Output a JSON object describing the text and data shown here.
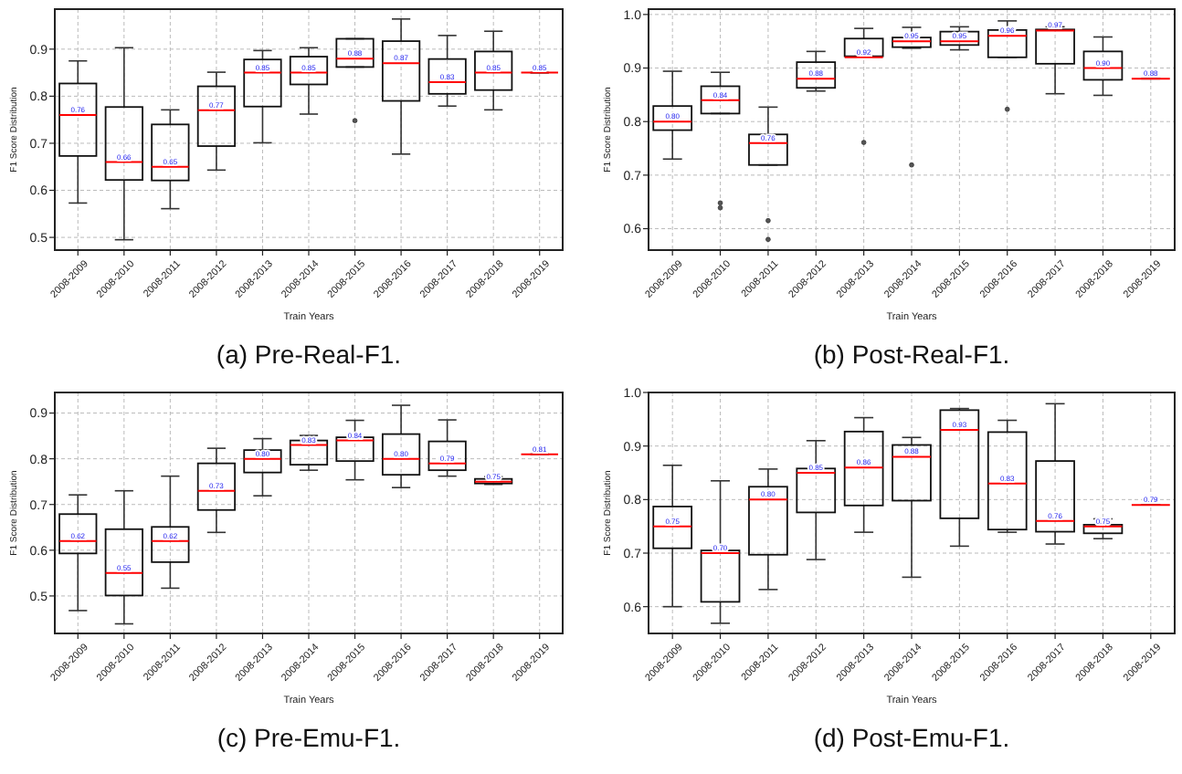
{
  "chart_data": [
    {
      "type": "box",
      "title": "(a) Pre-Real-F1.",
      "xlabel": "Train Years",
      "ylabel": "F1 Score Distribution",
      "categories": [
        "2008-2009",
        "2008-2010",
        "2008-2011",
        "2008-2012",
        "2008-2013",
        "2008-2014",
        "2008-2015",
        "2008-2016",
        "2008-2017",
        "2008-2018",
        "2008-2019"
      ],
      "ylim": [
        0.473,
        0.985
      ],
      "yticks": [
        0.5,
        0.6,
        0.7,
        0.8,
        0.9
      ],
      "grid": true,
      "value_labels": [
        "0.76",
        "0.66",
        "0.65",
        "0.77",
        "0.85",
        "0.85",
        "0.88",
        "0.87",
        "0.83",
        "0.85",
        "0.85"
      ],
      "boxes": [
        {
          "low": 0.573,
          "q1": 0.673,
          "median": 0.76,
          "q3": 0.827,
          "high": 0.875
        },
        {
          "low": 0.495,
          "q1": 0.622,
          "median": 0.66,
          "q3": 0.777,
          "high": 0.903
        },
        {
          "low": 0.561,
          "q1": 0.621,
          "median": 0.65,
          "q3": 0.74,
          "high": 0.771
        },
        {
          "low": 0.643,
          "q1": 0.694,
          "median": 0.77,
          "q3": 0.821,
          "high": 0.851
        },
        {
          "low": 0.701,
          "q1": 0.778,
          "median": 0.85,
          "q3": 0.878,
          "high": 0.897
        },
        {
          "low": 0.762,
          "q1": 0.825,
          "median": 0.85,
          "q3": 0.884,
          "high": 0.903
        },
        {
          "low": 0.862,
          "q1": 0.862,
          "median": 0.88,
          "q3": 0.922,
          "high": 0.922,
          "outliers": [
            0.748
          ]
        },
        {
          "low": 0.677,
          "q1": 0.79,
          "median": 0.87,
          "q3": 0.917,
          "high": 0.964
        },
        {
          "low": 0.779,
          "q1": 0.805,
          "median": 0.83,
          "q3": 0.879,
          "high": 0.929
        },
        {
          "low": 0.771,
          "q1": 0.813,
          "median": 0.85,
          "q3": 0.895,
          "high": 0.938
        },
        {
          "low": 0.85,
          "q1": 0.85,
          "median": 0.85,
          "q3": 0.85,
          "high": 0.85
        }
      ]
    },
    {
      "type": "box",
      "title": "(b) Post-Real-F1.",
      "xlabel": "Train Years",
      "ylabel": "F1 Score Distribution",
      "categories": [
        "2008-2009",
        "2008-2010",
        "2008-2011",
        "2008-2012",
        "2008-2013",
        "2008-2014",
        "2008-2015",
        "2008-2016",
        "2008-2017",
        "2008-2018",
        "2008-2019"
      ],
      "ylim": [
        0.56,
        1.01
      ],
      "yticks": [
        0.6,
        0.7,
        0.8,
        0.9,
        {
          "value": 1,
          "label": "1.0"
        }
      ],
      "grid": true,
      "value_labels": [
        "0.80",
        "0.84",
        "0.76",
        "0.88",
        "0.92",
        "0.95",
        "0.95",
        "0.96",
        "0.97",
        "0.90",
        "0.88"
      ],
      "boxes": [
        {
          "low": 0.73,
          "q1": 0.784,
          "median": 0.8,
          "q3": 0.829,
          "high": 0.894
        },
        {
          "low": 0.815,
          "q1": 0.815,
          "median": 0.84,
          "q3": 0.866,
          "high": 0.892,
          "outliers": [
            0.648,
            0.639
          ]
        },
        {
          "low": 0.719,
          "q1": 0.719,
          "median": 0.76,
          "q3": 0.776,
          "high": 0.827,
          "outliers": [
            0.615,
            0.58
          ]
        },
        {
          "low": 0.857,
          "q1": 0.863,
          "median": 0.88,
          "q3": 0.911,
          "high": 0.931
        },
        {
          "low": 0.922,
          "q1": 0.922,
          "median": 0.92,
          "q3": 0.955,
          "high": 0.974,
          "outliers": [
            0.761
          ]
        },
        {
          "low": 0.937,
          "q1": 0.939,
          "median": 0.95,
          "q3": 0.957,
          "high": 0.976,
          "outliers": [
            0.719
          ]
        },
        {
          "low": 0.934,
          "q1": 0.943,
          "median": 0.95,
          "q3": 0.968,
          "high": 0.977
        },
        {
          "low": 0.92,
          "q1": 0.92,
          "median": 0.96,
          "q3": 0.971,
          "high": 0.988,
          "outliers": [
            0.823
          ]
        },
        {
          "low": 0.852,
          "q1": 0.908,
          "median": 0.97,
          "q3": 0.972,
          "high": 0.977
        },
        {
          "low": 0.849,
          "q1": 0.878,
          "median": 0.9,
          "q3": 0.931,
          "high": 0.958
        },
        {
          "low": 0.88,
          "q1": 0.88,
          "median": 0.88,
          "q3": 0.88,
          "high": 0.88
        }
      ]
    },
    {
      "type": "box",
      "title": "(c) Pre-Emu-F1.",
      "xlabel": "Train Years",
      "ylabel": "F1 Score Distribution",
      "categories": [
        "2008-2009",
        "2008-2010",
        "2008-2011",
        "2008-2012",
        "2008-2013",
        "2008-2014",
        "2008-2015",
        "2008-2016",
        "2008-2017",
        "2008-2018",
        "2008-2019"
      ],
      "ylim": [
        0.418,
        0.945
      ],
      "yticks": [
        0.5,
        0.6,
        0.7,
        0.8,
        0.9
      ],
      "grid": true,
      "value_labels": [
        "0.62",
        "0.55",
        "0.62",
        "0.73",
        "0.80",
        "0.83",
        "0.84",
        "0.80",
        "0.79",
        "0.75",
        "0.81"
      ],
      "boxes": [
        {
          "low": 0.468,
          "q1": 0.593,
          "median": 0.62,
          "q3": 0.679,
          "high": 0.721
        },
        {
          "low": 0.439,
          "q1": 0.501,
          "median": 0.55,
          "q3": 0.646,
          "high": 0.73
        },
        {
          "low": 0.517,
          "q1": 0.574,
          "median": 0.62,
          "q3": 0.651,
          "high": 0.762
        },
        {
          "low": 0.639,
          "q1": 0.688,
          "median": 0.73,
          "q3": 0.79,
          "high": 0.823
        },
        {
          "low": 0.719,
          "q1": 0.77,
          "median": 0.8,
          "q3": 0.819,
          "high": 0.844
        },
        {
          "low": 0.775,
          "q1": 0.787,
          "median": 0.83,
          "q3": 0.84,
          "high": 0.851
        },
        {
          "low": 0.754,
          "q1": 0.795,
          "median": 0.84,
          "q3": 0.847,
          "high": 0.884
        },
        {
          "low": 0.737,
          "q1": 0.765,
          "median": 0.8,
          "q3": 0.854,
          "high": 0.917
        },
        {
          "low": 0.762,
          "q1": 0.775,
          "median": 0.79,
          "q3": 0.838,
          "high": 0.885
        },
        {
          "low": 0.744,
          "q1": 0.746,
          "median": 0.75,
          "q3": 0.756,
          "high": 0.761
        },
        {
          "low": 0.81,
          "q1": 0.81,
          "median": 0.81,
          "q3": 0.81,
          "high": 0.81
        }
      ]
    },
    {
      "type": "box",
      "title": "(d) Post-Emu-F1.",
      "xlabel": "Train Years",
      "ylabel": "F1 Score Distribution",
      "categories": [
        "2008-2009",
        "2008-2010",
        "2008-2011",
        "2008-2012",
        "2008-2013",
        "2008-2014",
        "2008-2015",
        "2008-2016",
        "2008-2017",
        "2008-2018",
        "2008-2019"
      ],
      "ylim": [
        0.55,
        1.0
      ],
      "yticks": [
        0.6,
        0.7,
        0.8,
        0.9,
        {
          "value": 1,
          "label": "1.0"
        }
      ],
      "grid": true,
      "value_labels": [
        "0.75",
        "0.70",
        "0.80",
        "0.85",
        "0.86",
        "0.88",
        "0.93",
        "0.83",
        "0.76",
        "0.75",
        "0.79"
      ],
      "boxes": [
        {
          "low": 0.6,
          "q1": 0.709,
          "median": 0.75,
          "q3": 0.787,
          "high": 0.864
        },
        {
          "low": 0.569,
          "q1": 0.609,
          "median": 0.7,
          "q3": 0.705,
          "high": 0.835
        },
        {
          "low": 0.632,
          "q1": 0.697,
          "median": 0.8,
          "q3": 0.824,
          "high": 0.857
        },
        {
          "low": 0.688,
          "q1": 0.776,
          "median": 0.85,
          "q3": 0.858,
          "high": 0.91
        },
        {
          "low": 0.739,
          "q1": 0.789,
          "median": 0.86,
          "q3": 0.927,
          "high": 0.953
        },
        {
          "low": 0.655,
          "q1": 0.798,
          "median": 0.88,
          "q3": 0.902,
          "high": 0.916
        },
        {
          "low": 0.713,
          "q1": 0.765,
          "median": 0.93,
          "q3": 0.967,
          "high": 0.97
        },
        {
          "low": 0.739,
          "q1": 0.744,
          "median": 0.83,
          "q3": 0.926,
          "high": 0.948
        },
        {
          "low": 0.717,
          "q1": 0.74,
          "median": 0.76,
          "q3": 0.872,
          "high": 0.979
        },
        {
          "low": 0.727,
          "q1": 0.737,
          "median": 0.75,
          "q3": 0.753,
          "high": 0.764
        },
        {
          "low": 0.79,
          "q1": 0.79,
          "median": 0.79,
          "q3": 0.79,
          "high": 0.79
        }
      ]
    }
  ]
}
